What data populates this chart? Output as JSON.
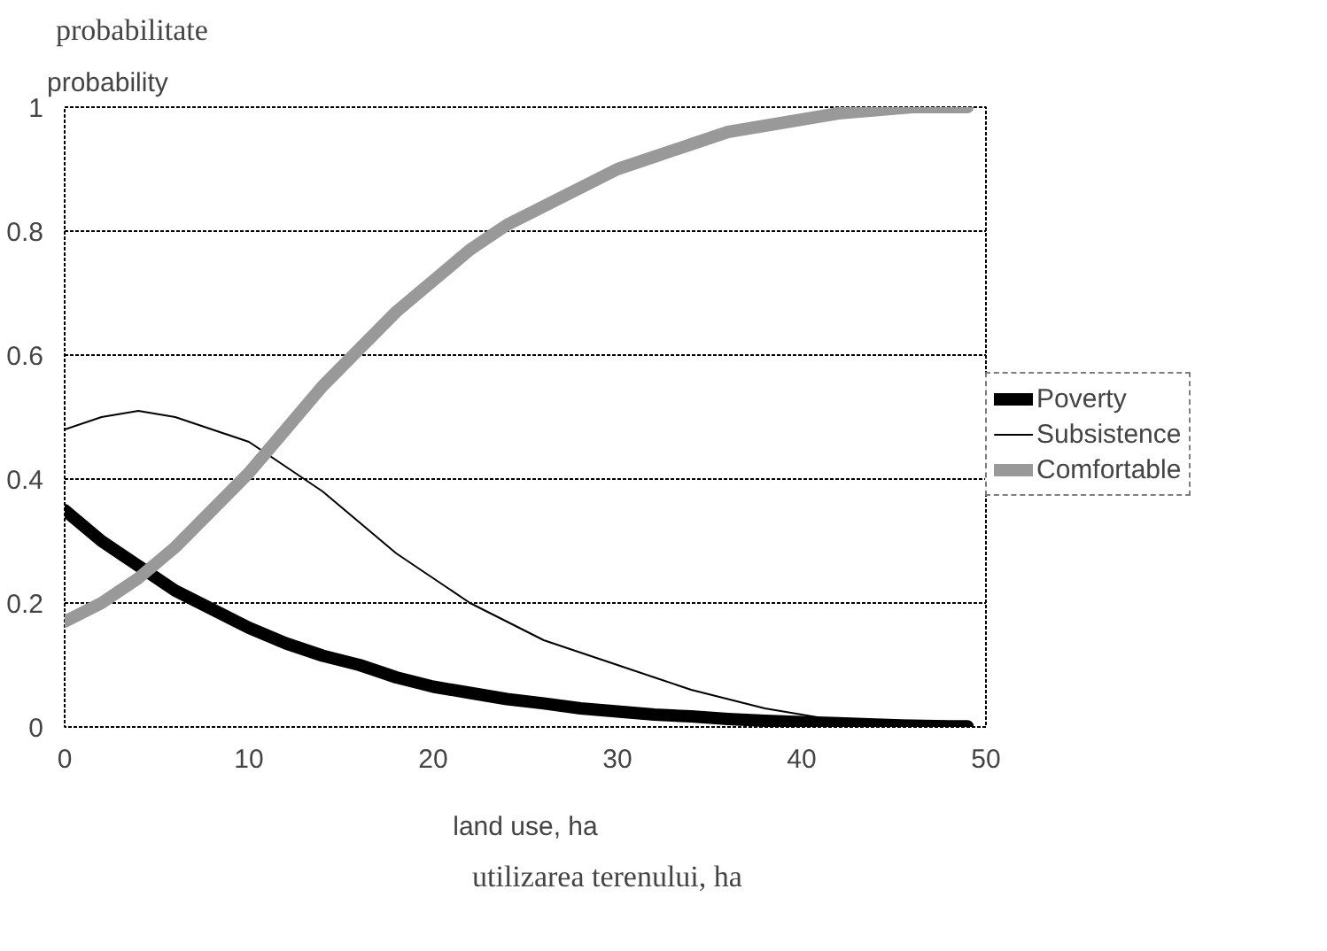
{
  "chart_data": {
    "type": "line",
    "ylabel": "probability",
    "xlabel": "land use, ha",
    "annotations": [
      "probabilitate",
      "utilizarea terenului, ha"
    ],
    "x": [
      0,
      2,
      4,
      6,
      8,
      10,
      12,
      14,
      16,
      18,
      20,
      22,
      24,
      26,
      28,
      30,
      32,
      34,
      36,
      38,
      40,
      42,
      44,
      46,
      48,
      49
    ],
    "series": [
      {
        "name": "Poverty",
        "color": "#000000",
        "values": [
          0.35,
          0.3,
          0.26,
          0.22,
          0.19,
          0.16,
          0.135,
          0.115,
          0.1,
          0.08,
          0.065,
          0.055,
          0.045,
          0.038,
          0.03,
          0.025,
          0.02,
          0.017,
          0.013,
          0.01,
          0.008,
          0.006,
          0.004,
          0.002,
          0.001,
          0.001
        ]
      },
      {
        "name": "Subsistence",
        "color": "#000000",
        "values": [
          0.48,
          0.5,
          0.51,
          0.5,
          0.48,
          0.46,
          0.42,
          0.38,
          0.33,
          0.28,
          0.24,
          0.2,
          0.17,
          0.14,
          0.12,
          0.1,
          0.08,
          0.06,
          0.045,
          0.03,
          0.02,
          0.01,
          0.005,
          0.002,
          0.001,
          0
        ]
      },
      {
        "name": "Comfortable",
        "color": "#999999",
        "values": [
          0.17,
          0.2,
          0.24,
          0.29,
          0.35,
          0.41,
          0.48,
          0.55,
          0.61,
          0.67,
          0.72,
          0.77,
          0.81,
          0.84,
          0.87,
          0.9,
          0.92,
          0.94,
          0.96,
          0.97,
          0.98,
          0.99,
          0.995,
          1,
          1,
          1
        ]
      }
    ],
    "xlim": [
      0,
      50
    ],
    "ylim": [
      0,
      1
    ],
    "xticks": [
      0,
      10,
      20,
      30,
      40,
      50
    ],
    "yticks": [
      0,
      0.2,
      0.4,
      0.6,
      0.8,
      1
    ],
    "grid": "y",
    "legend": "right",
    "marker": "none",
    "line_style": "solid"
  }
}
